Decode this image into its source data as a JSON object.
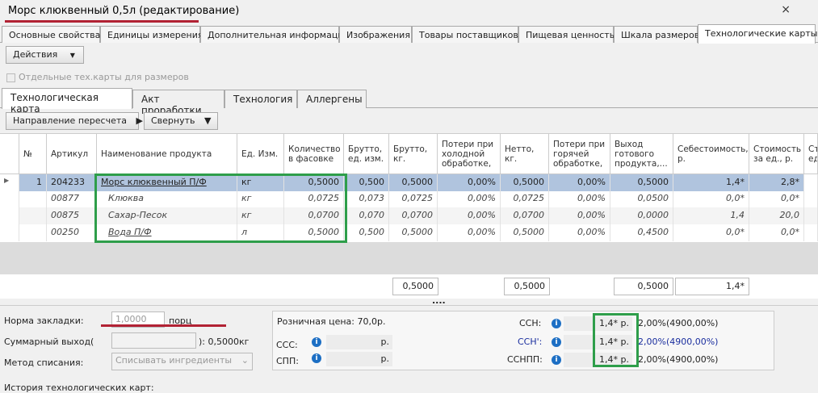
{
  "window": {
    "title": "Морс клюквенный 0,5л (редактирование)",
    "close": "×"
  },
  "tabs": [
    "Основные свойства",
    "Единицы измерения",
    "Дополнительная информация",
    "Изображения",
    "Товары поставщиков",
    "Пищевая ценность",
    "Шкала размеров",
    "Технологические карты"
  ],
  "toolbar": {
    "actions": "Действия"
  },
  "separate_cards": "Отдельные тех.карты для размеров",
  "subtabs": [
    "Технологическая карта",
    "Акт проработки",
    "Технология",
    "Аллергены"
  ],
  "grid_toolbar": {
    "direction": "Направление пересчета",
    "collapse": "Свернуть"
  },
  "columns": [
    "№",
    "Артикул",
    "Наименование продукта",
    "Ед. Изм.",
    "Количество в фасовке",
    "Брутто, ед. изм.",
    "Брутто, кг.",
    "Потери при холодной обработке,",
    "Нетто, кг.",
    "Потери при горячей обработке,",
    "Выход готового продукта,...",
    "Себестоимость, р.",
    "Стоимость за ед., р.",
    "Ст ед"
  ],
  "rows": [
    [
      "1",
      "204233",
      "Морс клюквенный П/Ф",
      "кг",
      "0,5000",
      "0,500",
      "0,5000",
      "0,00%",
      "0,5000",
      "0,00%",
      "0,5000",
      "1,4*",
      "2,8*"
    ],
    [
      "",
      "00877",
      "Клюква",
      "кг",
      "0,0725",
      "0,073",
      "0,0725",
      "0,00%",
      "0,0725",
      "0,00%",
      "0,0500",
      "0,0*",
      "0,0*"
    ],
    [
      "",
      "00875",
      "Сахар-Песок",
      "кг",
      "0,0700",
      "0,070",
      "0,0700",
      "0,00%",
      "0,0700",
      "0,00%",
      "0,0000",
      "1,4",
      "20,0"
    ],
    [
      "",
      "00250",
      "Вода П/Ф",
      "л",
      "0,5000",
      "0,500",
      "0,5000",
      "0,00%",
      "0,5000",
      "0,00%",
      "0,4500",
      "0,0*",
      "0,0*"
    ]
  ],
  "totals": {
    "brutto_kg": "0,5000",
    "netto": "0,5000",
    "output": "0,5000",
    "cost": "1,4*"
  },
  "splitter": "....",
  "form": {
    "norm_label": "Норма закладки:",
    "norm_value": "1,0000",
    "norm_unit": "порц",
    "total_label": "Суммарный выход(",
    "total_value": "): 0,5000кг",
    "method_label": "Метод списания:",
    "method_value": "Списывать ингредиенты",
    "history": "История технологических карт:"
  },
  "panel": {
    "retail": "Розничная цена:  70,0р.",
    "ccc": "ССС:",
    "ccc_unit": "р.",
    "spp": "СПП:",
    "spp_unit": "р.",
    "ssn": "ССН:",
    "ssn_val": "1,4* р.",
    "ssn_pct": "2,00%(4900,00%)",
    "ssn2": "ССН':",
    "ssn2_val": "1,4* р.",
    "ssn2_pct": "2,00%(4900,00%)",
    "ssnpp": "ССНПП:",
    "ssnpp_val": "1,4* р.",
    "ssnpp_pct": "2,00%(4900,00%)"
  },
  "colors": {
    "highlight": "#2e9e4a",
    "underline": "#b22234",
    "selected_row": "#b0c4de"
  }
}
